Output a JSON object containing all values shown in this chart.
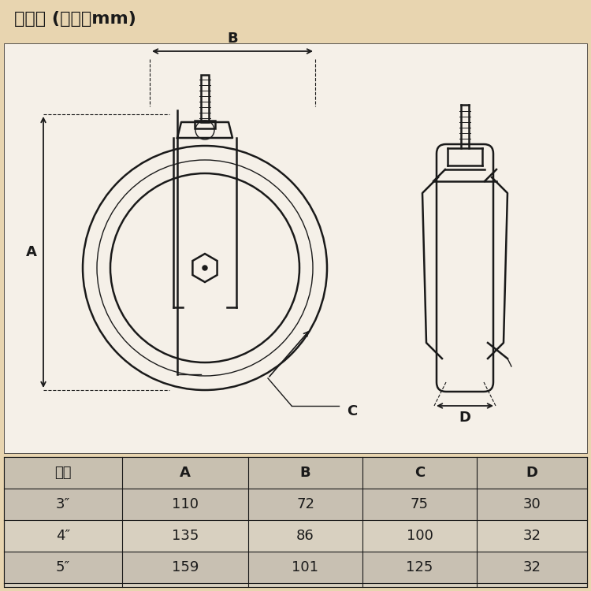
{
  "title": "装配图 (单位：mm)",
  "title_fontsize": 16,
  "bg_color": "#e8d5b0",
  "drawing_bg": "#f5f0e8",
  "table_bg": "#d8d0c0",
  "table_header_bg": "#c8c0b0",
  "line_color": "#1a1a1a",
  "dim_color": "#1a1a1a",
  "table_columns": [
    "规格",
    "A",
    "B",
    "C",
    "D"
  ],
  "table_rows": [
    [
      "3″",
      "110",
      "72",
      "75",
      "30"
    ],
    [
      "4″",
      "135",
      "86",
      "100",
      "32"
    ],
    [
      "5″",
      "159",
      "101",
      "125",
      "32"
    ]
  ],
  "table_header_row": [
    "规格",
    "A",
    "B",
    "C",
    "D"
  ],
  "dim_labels": [
    "A",
    "B",
    "C",
    "D"
  ],
  "font_size_table": 12,
  "font_size_dim": 13
}
